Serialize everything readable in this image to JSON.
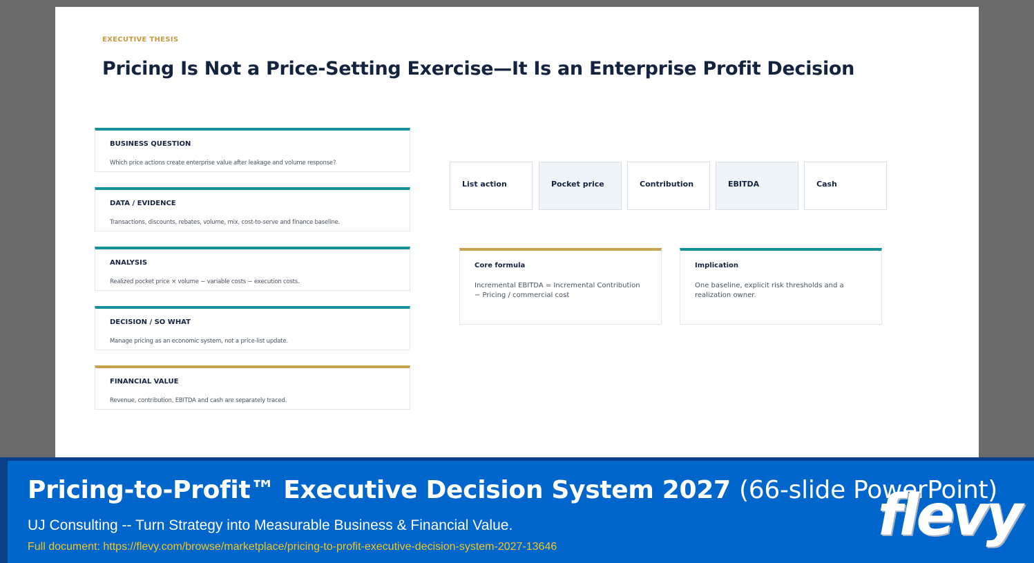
{
  "slide": {
    "kicker": "EXECUTIVE THESIS",
    "title": "Pricing Is Not a Price-Setting Exercise—It Is an Enterprise Profit Decision",
    "cards": [
      {
        "title": "BUSINESS QUESTION",
        "body": "Which price actions create enterprise value after leakage and volume response?"
      },
      {
        "title": "DATA / EVIDENCE",
        "body": "Transactions, discounts, rebates, volume, mix, cost-to-serve and finance baseline."
      },
      {
        "title": "ANALYSIS",
        "body": "Realized pocket price × volume − variable costs − execution costs."
      },
      {
        "title": "DECISION / SO WHAT",
        "body": "Manage pricing as an economic system, not a price-list update."
      },
      {
        "title": "FINANCIAL VALUE",
        "body": "Revenue, contribution, EBITDA and cash are separately traced."
      }
    ],
    "chain": [
      "List action",
      "Pocket price",
      "Contribution",
      "EBITDA",
      "Cash"
    ],
    "notes": [
      {
        "title": "Core formula",
        "body": "Incremental EBITDA = Incremental Contribution − Pricing / commercial cost"
      },
      {
        "title": "Implication",
        "body": "One baseline, explicit risk thresholds and a realization owner."
      }
    ]
  },
  "banner": {
    "title": "Pricing-to-Profit™ Executive Decision System 2027",
    "title_suffix": "(66-slide PowerPoint)",
    "subtitle": "UJ Consulting -- Turn Strategy into Measurable Business & Financial Value.",
    "link": "Full document: https://flevy.com/browse/marketplace/pricing-to-profit-executive-decision-system-2027-13646",
    "brand": "flevy"
  },
  "colors": {
    "teal_accent": "#14919b",
    "gold_accent": "#c9a24f",
    "navy_text": "#14243f",
    "banner_blue": "#0066cc",
    "link_yellow": "#f3c623"
  }
}
